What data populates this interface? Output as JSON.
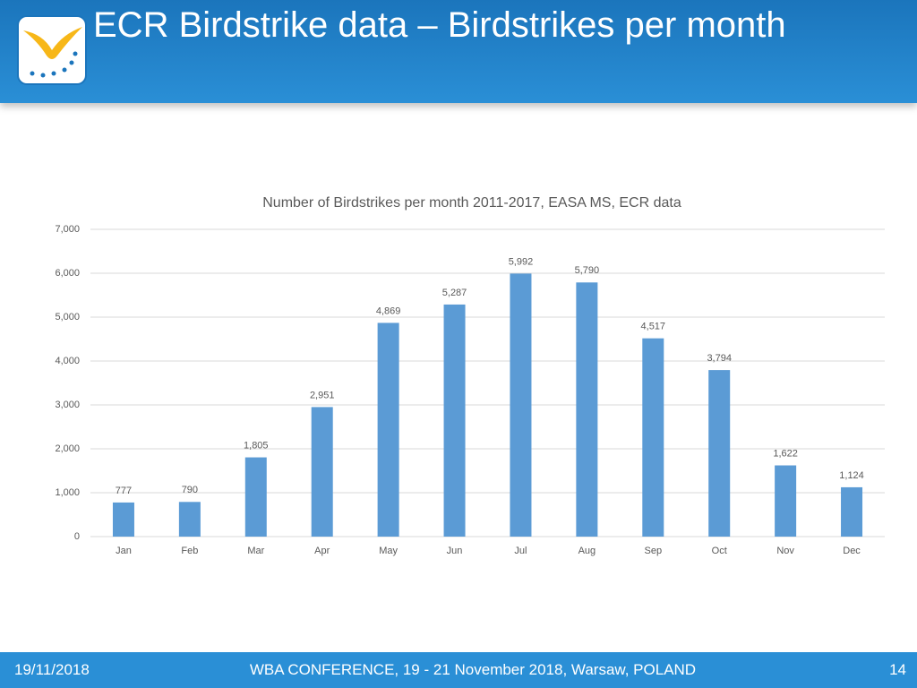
{
  "slide": {
    "title": "ECR Birdstrike data – Birdstrikes per month",
    "footer_date": "19/11/2018",
    "footer_center": "WBA CONFERENCE, 19 - 21 November 2018, Warsaw, POLAND",
    "page_number": "14"
  },
  "chart_data": {
    "type": "bar",
    "title": "Number of Birdstrikes per month 2011-2017, EASA MS, ECR data",
    "categories": [
      "Jan",
      "Feb",
      "Mar",
      "Apr",
      "May",
      "Jun",
      "Jul",
      "Aug",
      "Sep",
      "Oct",
      "Nov",
      "Dec"
    ],
    "values": [
      777,
      790,
      1805,
      2951,
      4869,
      5287,
      5992,
      5790,
      4517,
      3794,
      1622,
      1124
    ],
    "value_labels": [
      "777",
      "790",
      "1,805",
      "2,951",
      "4,869",
      "5,287",
      "5,992",
      "5,790",
      "4,517",
      "3,794",
      "1,622",
      "1,124"
    ],
    "color": "#5b9bd5",
    "ylim": [
      0,
      7000
    ],
    "yticks": [
      0,
      {
        "value": 1000,
        "label": "1,000"
      },
      {
        "value": 2000,
        "label": "2,000"
      },
      {
        "value": 3000,
        "label": "3,000"
      },
      {
        "value": 4000,
        "label": "4,000"
      },
      {
        "value": 5000,
        "label": "5,000"
      },
      {
        "value": 6000,
        "label": "6,000"
      },
      {
        "value": 7000,
        "label": "7,000"
      }
    ],
    "grid": true
  }
}
